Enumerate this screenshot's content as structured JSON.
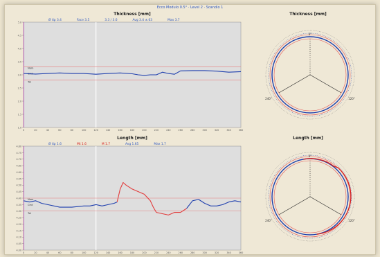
{
  "header": {
    "text": "Ecco Modulo 0.5° · Level 2 · Scandio 1"
  },
  "top_panel": {
    "title": "Thickness [mm]",
    "stats": [
      {
        "text": "Ø tip 3.4",
        "color": "blue"
      },
      {
        "text": "Face 3.5",
        "color": "blue"
      },
      {
        "text": "3.3 / 3.6",
        "color": "blue"
      },
      {
        "text": "Avg 3.4 ±.03",
        "color": "blue"
      },
      {
        "text": "Max 3.7",
        "color": "blue"
      }
    ],
    "tol_labels": [
      "Nom",
      "Cmt",
      "Tol"
    ]
  },
  "bottom_panel": {
    "title": "Length [mm]",
    "stats": [
      {
        "text": "Ø tip 1.6",
        "color": "blue"
      },
      {
        "text": "Mt 1.6",
        "color": "red"
      },
      {
        "text": "M 1.7",
        "color": "red"
      },
      {
        "text": "Avg 1.65",
        "color": "blue"
      },
      {
        "text": "Max 1.7",
        "color": "blue"
      }
    ],
    "tol_labels": [
      "Nom",
      "Cmt",
      "Tol"
    ]
  },
  "polar_top": {
    "title": "Thickness [mm]",
    "tick_labels": [
      "0°",
      "240°",
      "120°"
    ]
  },
  "polar_bottom": {
    "title": "Length [mm]",
    "tick_labels": [
      "0°",
      "240°",
      "120°"
    ]
  },
  "colors": {
    "series": "#1e3fae",
    "limit": "#e23a3a",
    "bg_plot": "#dedede"
  },
  "chart_data": [
    {
      "type": "line",
      "name": "thickness-profile",
      "ylim": [
        1,
        5
      ],
      "xlim": [
        0,
        360
      ],
      "yticks": [
        "5.0",
        "4.5",
        "4.0",
        "3.5",
        "3.0",
        "2.5",
        "2.0",
        "1.5",
        "1.0"
      ],
      "xticks": [
        "0",
        "20",
        "40",
        "60",
        "80",
        "100",
        "120",
        "140",
        "160",
        "180",
        "200",
        "220",
        "240",
        "260",
        "280",
        "300",
        "320",
        "340",
        "360"
      ],
      "upper_limit": 3.3,
      "lower_limit": 2.8,
      "nominal": 3.05,
      "series": [
        {
          "color": "blue",
          "x": [
            0,
            20,
            40,
            60,
            80,
            100,
            120,
            140,
            160,
            180,
            190,
            200,
            210,
            220,
            230,
            240,
            250,
            260,
            280,
            300,
            320,
            340,
            360
          ],
          "y": [
            3.05,
            3.03,
            3.05,
            3.07,
            3.05,
            3.05,
            3.02,
            3.05,
            3.07,
            3.04,
            3.0,
            2.98,
            3.0,
            3.0,
            3.1,
            3.05,
            3.02,
            3.15,
            3.16,
            3.16,
            3.14,
            3.1,
            3.12
          ]
        }
      ]
    },
    {
      "type": "line",
      "name": "length-profile",
      "ylim": [
        4.0,
        4.8
      ],
      "xlim": [
        0,
        360
      ],
      "yticks": [
        "4.80",
        "4.75",
        "4.70",
        "4.65",
        "4.60",
        "4.55",
        "4.50",
        "4.45",
        "4.40",
        "4.35",
        "4.30",
        "4.25",
        "4.20",
        "4.15",
        "4.10",
        "4.05",
        "4.00"
      ],
      "xticks": [
        "0",
        "20",
        "40",
        "60",
        "80",
        "100",
        "120",
        "140",
        "160",
        "180",
        "200",
        "220",
        "240",
        "260",
        "280",
        "300",
        "320",
        "340",
        "360"
      ],
      "upper_limit": 4.4,
      "lower_limit": 4.3,
      "nominal": 4.35,
      "series": [
        {
          "color": "blue",
          "x": [
            0,
            10,
            20,
            30,
            40,
            60,
            80,
            100,
            110,
            120,
            130,
            140,
            150,
            155
          ],
          "y": [
            4.38,
            4.37,
            4.38,
            4.36,
            4.35,
            4.33,
            4.33,
            4.34,
            4.34,
            4.35,
            4.34,
            4.35,
            4.36,
            4.37
          ]
        },
        {
          "color": "red",
          "x": [
            155,
            160,
            165,
            170,
            180,
            190,
            200,
            210,
            215,
            220,
            230,
            240,
            250,
            260,
            270
          ],
          "y": [
            4.37,
            4.47,
            4.52,
            4.5,
            4.47,
            4.45,
            4.43,
            4.38,
            4.33,
            4.29,
            4.28,
            4.27,
            4.29,
            4.29,
            4.32
          ]
        },
        {
          "color": "blue",
          "x": [
            270,
            280,
            290,
            300,
            310,
            320,
            330,
            340,
            350,
            360
          ],
          "y": [
            4.32,
            4.38,
            4.39,
            4.36,
            4.34,
            4.34,
            4.35,
            4.37,
            4.38,
            4.37
          ]
        }
      ]
    }
  ]
}
